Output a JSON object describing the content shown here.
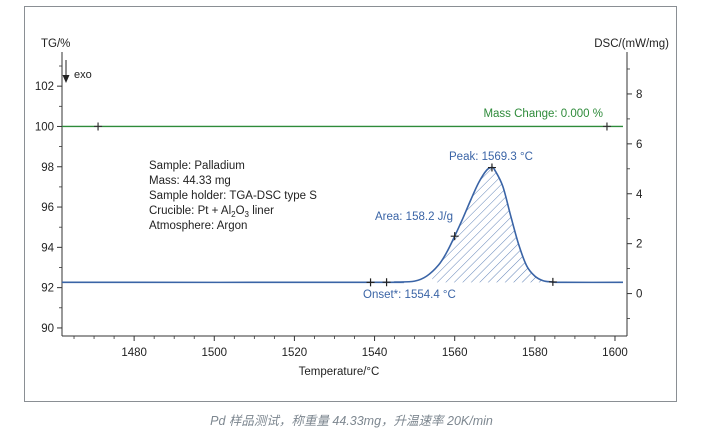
{
  "caption": "Pd 样品测试，称重量 44.33mg，升温速率 20K/min",
  "chart_data": {
    "type": "line",
    "xlabel": "Temperature/°C",
    "ylabel_left": "TG/%",
    "ylabel_right": "DSC/(mW/mg)",
    "exo_label": "exo",
    "xlim": [
      1462,
      1603
    ],
    "ylim_left": [
      89.6,
      103.1
    ],
    "ylim_right": [
      -1.7,
      9.2
    ],
    "x_ticks": [
      1480,
      1500,
      1520,
      1540,
      1560,
      1580,
      1600
    ],
    "y_ticks_left": [
      90,
      92,
      94,
      96,
      98,
      100,
      102
    ],
    "y_ticks_right": [
      0,
      2,
      4,
      6,
      8
    ],
    "colors": {
      "tg": "#2e8b3a",
      "dsc": "#3a64a6",
      "axis": "#333333",
      "text": "#222222"
    },
    "series": [
      {
        "name": "TG",
        "axis": "left",
        "x": [
          1462,
          1602
        ],
        "values": [
          100,
          100
        ],
        "markers": [
          1471,
          1598
        ]
      },
      {
        "name": "DSC",
        "axis": "right",
        "x": [
          1462,
          1540,
          1545,
          1550,
          1553,
          1556,
          1558,
          1560,
          1562,
          1564,
          1566,
          1568,
          1569.3,
          1570,
          1572,
          1574,
          1576,
          1578,
          1580,
          1582,
          1584,
          1587,
          1602
        ],
        "values": [
          0.45,
          0.45,
          0.46,
          0.5,
          0.7,
          1.15,
          1.65,
          2.3,
          3.0,
          3.75,
          4.45,
          4.95,
          5.05,
          4.95,
          4.3,
          3.1,
          1.95,
          1.1,
          0.7,
          0.52,
          0.47,
          0.45,
          0.45
        ],
        "markers": [
          1539,
          1543,
          1560,
          1569.3,
          1584.5
        ]
      }
    ],
    "shaded_region": {
      "x_start": 1554.4,
      "x_end": 1584.5,
      "baseline": 0.45,
      "label": "Area: 158.2 J/g"
    },
    "annotations": {
      "mass_change": "Mass Change: 0.000 %",
      "peak": "Peak: 1569.3 °C",
      "area": "Area: 158.2 J/g",
      "onset": "Onset*: 1554.4 °C",
      "sample_info": [
        "Sample: Palladium",
        "Mass: 44.33 mg",
        "Sample holder: TGA-DSC type S",
        {
          "prefix": "Crucible: Pt + Al",
          "sub1": "2",
          "mid": "O",
          "sub2": "3",
          "suffix": " liner"
        },
        "Atmosphere: Argon"
      ]
    }
  }
}
